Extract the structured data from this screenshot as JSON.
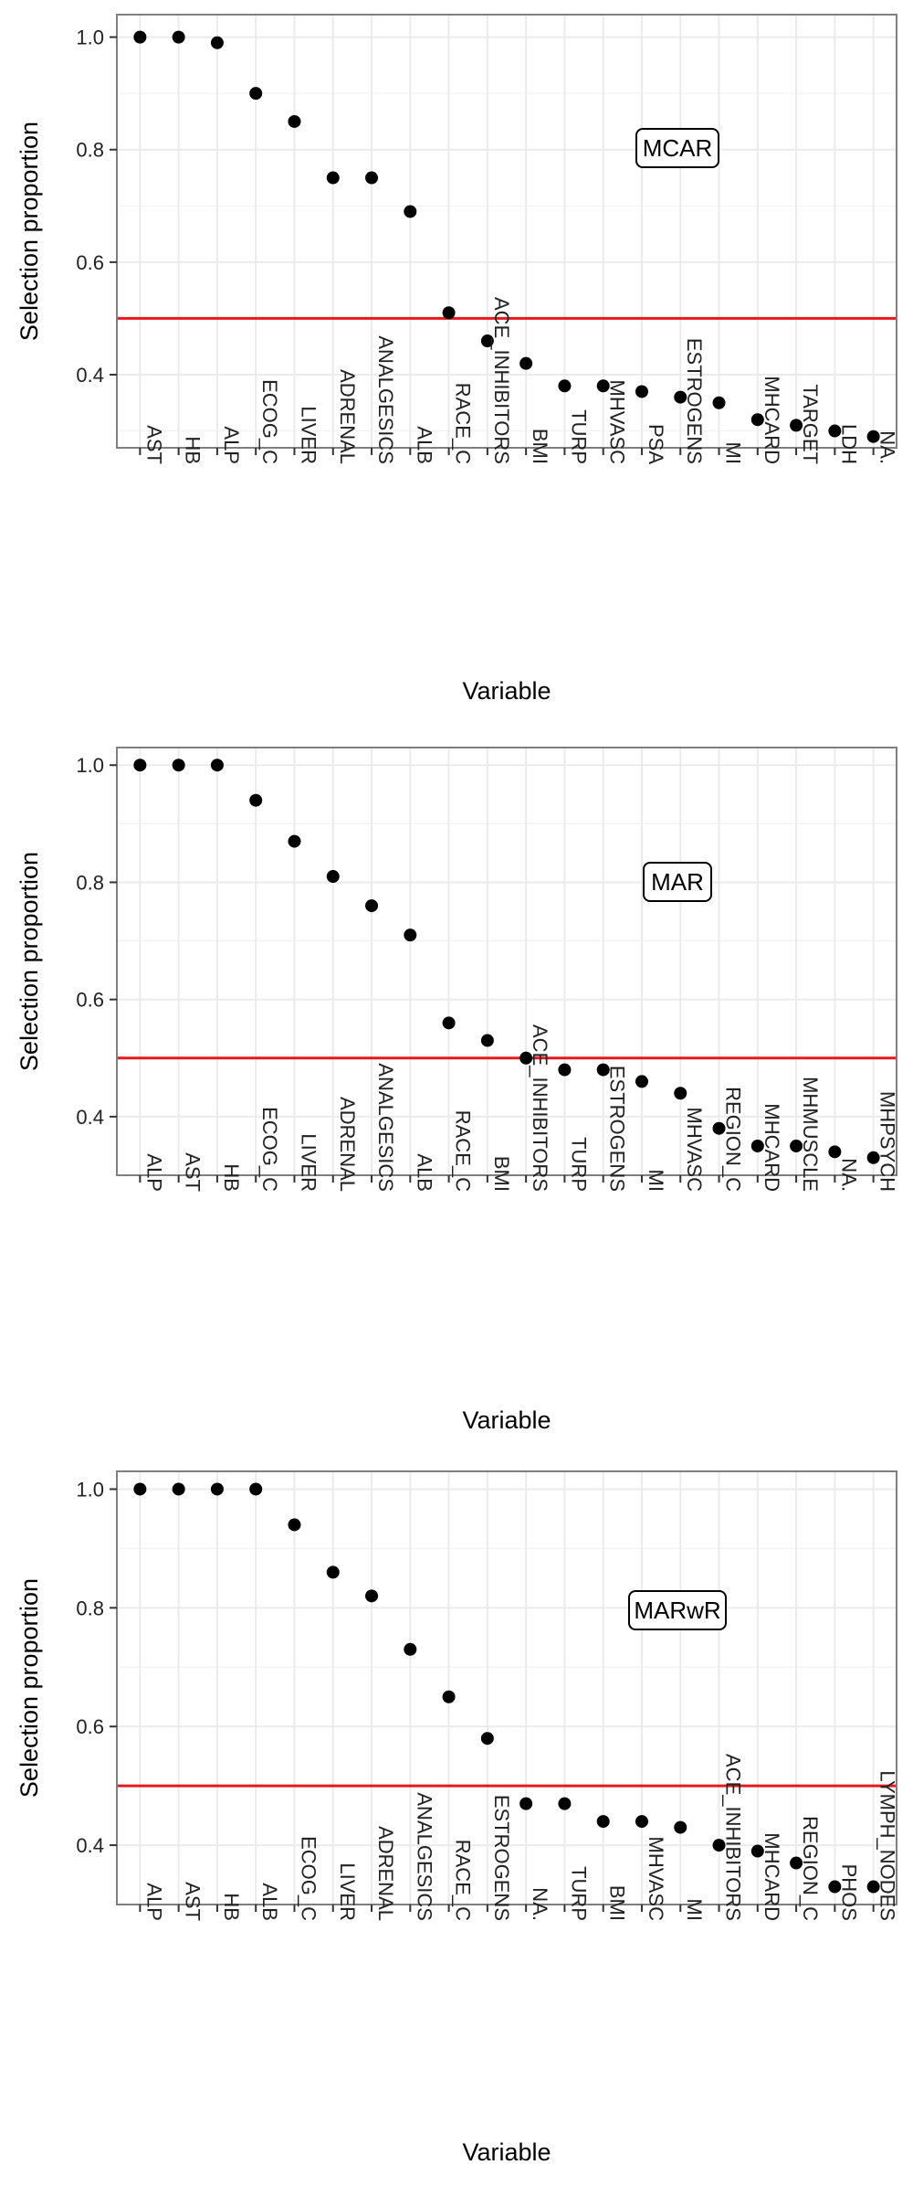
{
  "chart_data": [
    {
      "type": "scatter",
      "title": "",
      "annotation": "MCAR",
      "xlabel": "Variable",
      "ylabel": "Selection proportion",
      "ylim": [
        0.27,
        1.04
      ],
      "yticks": [
        "0.4",
        "0.6",
        "0.8",
        "1.0"
      ],
      "grid": true,
      "threshold": 0.5,
      "categories": [
        "AST",
        "HB",
        "ALP",
        "ECOG_C",
        "LIVER",
        "ADRENAL",
        "ANALGESICS",
        "ALB",
        "RACE_C",
        "ACE_INHIBITORS",
        "BMI",
        "TURP",
        "MHVASC",
        "PSA",
        "ESTROGENS",
        "MI",
        "MHCARD",
        "TARGET",
        "LDH",
        "NA."
      ],
      "values": [
        1.0,
        1.0,
        0.99,
        0.9,
        0.85,
        0.75,
        0.75,
        0.69,
        0.51,
        0.46,
        0.42,
        0.38,
        0.38,
        0.37,
        0.36,
        0.35,
        0.32,
        0.31,
        0.3,
        0.29
      ]
    },
    {
      "type": "scatter",
      "title": "",
      "annotation": "MAR",
      "xlabel": "Variable",
      "ylabel": "Selection proportion",
      "ylim": [
        0.3,
        1.03
      ],
      "yticks": [
        "0.4",
        "0.6",
        "0.8",
        "1.0"
      ],
      "grid": true,
      "threshold": 0.5,
      "categories": [
        "ALP",
        "AST",
        "HB",
        "ECOG_C",
        "LIVER",
        "ADRENAL",
        "ANALGESICS",
        "ALB",
        "RACE_C",
        "BMI",
        "ACE_INHIBITORS",
        "TURP",
        "ESTROGENS",
        "MI",
        "MHVASC",
        "REGION_C",
        "MHCARD",
        "MHMUSCLE",
        "NA.",
        "MHPSYCH"
      ],
      "values": [
        1.0,
        1.0,
        1.0,
        0.94,
        0.87,
        0.81,
        0.76,
        0.71,
        0.56,
        0.53,
        0.5,
        0.48,
        0.48,
        0.46,
        0.44,
        0.38,
        0.35,
        0.35,
        0.34,
        0.33
      ]
    },
    {
      "type": "scatter",
      "title": "",
      "annotation": "MARwR",
      "xlabel": "Variable",
      "ylabel": "Selection proportion",
      "ylim": [
        0.3,
        1.03
      ],
      "yticks": [
        "0.4",
        "0.6",
        "0.8",
        "1.0"
      ],
      "grid": true,
      "threshold": 0.5,
      "categories": [
        "ALP",
        "AST",
        "HB",
        "ALB",
        "ECOG_C",
        "LIVER",
        "ADRENAL",
        "ANALGESICS",
        "RACE_C",
        "ESTROGENS",
        "NA.",
        "TURP",
        "BMI",
        "MHVASC",
        "MI",
        "ACE_INHIBITORS",
        "MHCARD",
        "REGION_C",
        "PHOS",
        "LYMPH_NODES"
      ],
      "values": [
        1.0,
        1.0,
        1.0,
        1.0,
        0.94,
        0.86,
        0.82,
        0.73,
        0.65,
        0.58,
        0.47,
        0.47,
        0.44,
        0.44,
        0.43,
        0.4,
        0.39,
        0.37,
        0.33,
        0.33
      ]
    }
  ],
  "colors": {
    "points": "#000000",
    "threshold_line": "#e41a1c",
    "grid": "#ebebeb",
    "panel_border": "#7f7f7f"
  }
}
